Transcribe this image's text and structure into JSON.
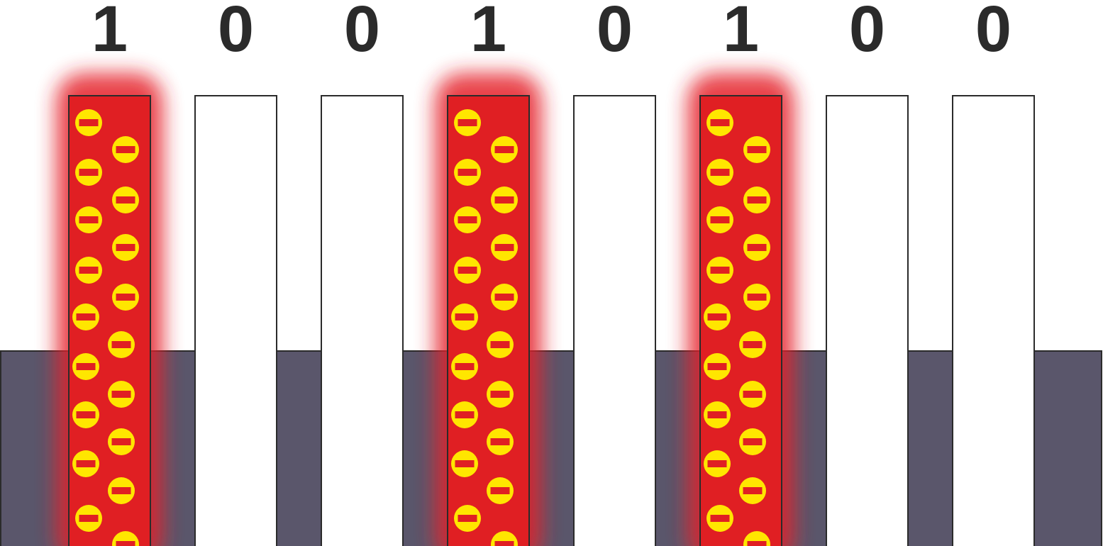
{
  "bits": [
    "1",
    "0",
    "0",
    "1",
    "0",
    "1",
    "0",
    "0"
  ],
  "colors": {
    "background": "#ffffff",
    "substrate": "#5a566b",
    "charged_column": "#e01f23",
    "glow": "#e5242a",
    "empty_column": "#ffffff",
    "outline": "#2b2b2b",
    "electron_fill": "#ffe600",
    "electron_minus": "#e01f23",
    "label": "#2b2b2b"
  },
  "icons": {
    "electron": "negative-charge-icon"
  }
}
